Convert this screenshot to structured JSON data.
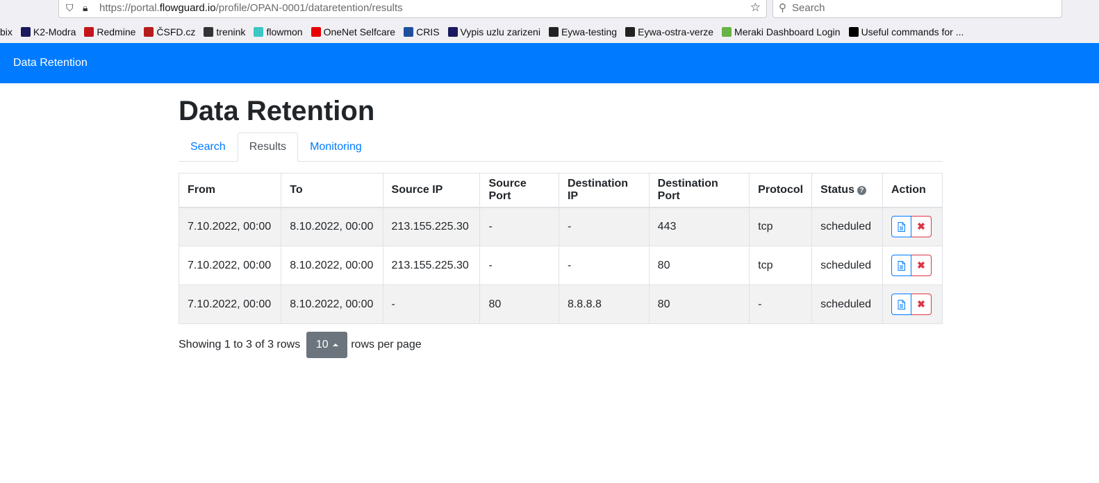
{
  "browser": {
    "url_prefix": "https://portal.",
    "url_domain": "flowguard.io",
    "url_path": "/profile/OPAN-0001/dataretention/results",
    "search_placeholder": "Search",
    "bookmarks": [
      {
        "label": "bix",
        "color": ""
      },
      {
        "label": "K2-Modra",
        "color": "#1a1a5e"
      },
      {
        "label": "Redmine",
        "color": "#c4161c"
      },
      {
        "label": "ČSFD.cz",
        "color": "#b71c1c"
      },
      {
        "label": "trenink",
        "color": "#333333"
      },
      {
        "label": "flowmon",
        "color": "#3cc6c6"
      },
      {
        "label": "OneNet Selfcare",
        "color": "#e60000"
      },
      {
        "label": "CRIS",
        "color": "#1e4f9c"
      },
      {
        "label": "Vypis uzlu zarizeni",
        "color": "#1a1a5e"
      },
      {
        "label": "Eywa-testing",
        "color": "#222222"
      },
      {
        "label": "Eywa-ostra-verze",
        "color": "#222222"
      },
      {
        "label": "Meraki Dashboard Login",
        "color": "#67b346"
      },
      {
        "label": "Useful commands for ...",
        "color": "#000000"
      }
    ]
  },
  "navbar": {
    "title": "Data Retention",
    "color": "#007bff"
  },
  "page": {
    "title": "Data Retention"
  },
  "tabs": [
    {
      "label": "Search",
      "active": false
    },
    {
      "label": "Results",
      "active": true
    },
    {
      "label": "Monitoring",
      "active": false
    }
  ],
  "table": {
    "headers": [
      "From",
      "To",
      "Source IP",
      "Source Port",
      "Destination IP",
      "Destination Port",
      "Protocol",
      "Status",
      "Action"
    ],
    "rows": [
      [
        "7.10.2022, 00:00",
        "8.10.2022, 00:00",
        "213.155.225.30",
        "-",
        "-",
        "443",
        "tcp",
        "scheduled"
      ],
      [
        "7.10.2022, 00:00",
        "8.10.2022, 00:00",
        "213.155.225.30",
        "-",
        "-",
        "80",
        "tcp",
        "scheduled"
      ],
      [
        "7.10.2022, 00:00",
        "8.10.2022, 00:00",
        "-",
        "80",
        "8.8.8.8",
        "80",
        "-",
        "scheduled"
      ]
    ],
    "status_help_icon": "question-circle-icon",
    "actions": {
      "view_icon": "document-icon",
      "delete_icon": "close-icon"
    }
  },
  "pagination": {
    "showing": "Showing 1 to 3 of 3 rows",
    "page_size": "10",
    "rows_per_page": "rows per page"
  }
}
